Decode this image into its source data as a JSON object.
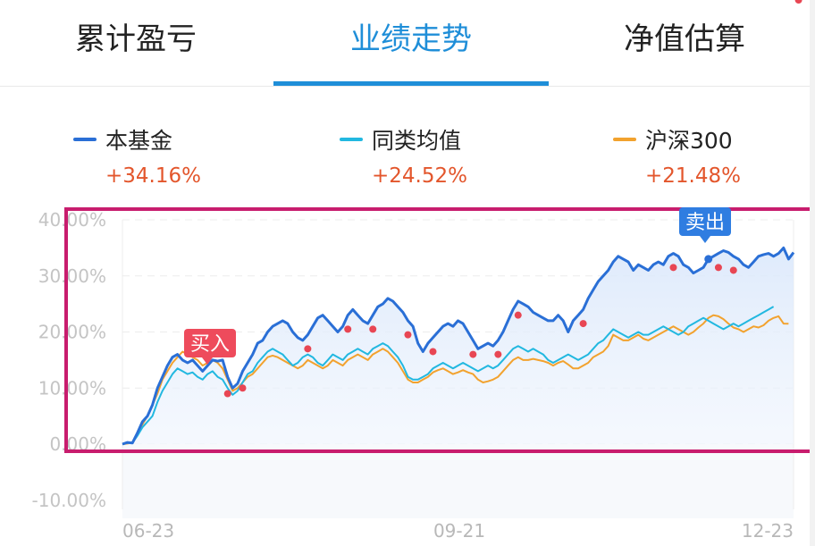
{
  "tabs": [
    {
      "label": "累计盈亏",
      "active": false
    },
    {
      "label": "业绩走势",
      "active": true
    },
    {
      "label": "净值估算",
      "active": false
    }
  ],
  "legend": [
    {
      "name": "本基金",
      "value": "+34.16%",
      "color": "#2a6fd6"
    },
    {
      "name": "同类均值",
      "value": "+24.52%",
      "color": "#22b8e0"
    },
    {
      "name": "沪深300",
      "value": "+21.48%",
      "color": "#f2a22e"
    }
  ],
  "chart_data": {
    "type": "line",
    "y_ticks": [
      "40.00%",
      "30.00%",
      "20.00%",
      "10.00%",
      "0.00%",
      "-10.00%"
    ],
    "x_ticks": [
      "06-23",
      "09-21",
      "12-23"
    ],
    "ylim": [
      -10,
      40
    ],
    "series": [
      {
        "name": "本基金",
        "color": "#2a6fd6",
        "values": [
          0,
          0.3,
          0.2,
          2,
          4,
          5,
          7,
          10,
          12,
          14,
          15.5,
          16,
          15,
          14.5,
          15,
          14,
          13,
          14,
          15,
          14.8,
          15,
          12,
          10,
          10.8,
          13,
          14.5,
          16,
          18,
          18.5,
          20,
          21,
          21.5,
          22,
          21.5,
          20,
          19,
          18.5,
          19.5,
          21,
          22.5,
          23,
          22,
          21,
          20,
          21,
          23,
          24,
          23,
          22,
          21.5,
          23,
          24.5,
          25,
          26,
          25.5,
          24.5,
          23.5,
          22,
          21,
          18,
          16.5,
          18,
          19,
          20,
          21,
          21.5,
          21,
          22,
          21.5,
          20,
          18.5,
          17,
          17.5,
          18,
          17.5,
          18.5,
          20,
          22,
          24,
          25.5,
          25,
          24.5,
          23.5,
          23,
          22.5,
          22,
          22,
          23,
          22,
          20,
          22,
          23,
          24,
          26,
          27.5,
          29,
          30,
          31,
          32.5,
          33.5,
          33,
          32.5,
          31,
          32,
          31.5,
          31,
          32,
          32.5,
          32,
          33.5,
          34,
          33.5,
          32,
          31.5,
          30.5,
          31,
          31.5,
          33,
          33.5,
          34,
          34.5,
          34.2,
          33.5,
          33,
          32,
          31.5,
          32.5,
          33.5,
          33.8,
          34,
          33.5,
          34,
          35,
          33,
          34.16
        ]
      },
      {
        "name": "同类均值",
        "color": "#22b8e0",
        "values": [
          0,
          0.2,
          0.2,
          1.5,
          3,
          4,
          5,
          7.5,
          9.5,
          11,
          12.5,
          13.5,
          13,
          12.5,
          12.8,
          12,
          11.5,
          12.5,
          13,
          12,
          11.5,
          10,
          8.8,
          9.5,
          11,
          12.5,
          13,
          14.5,
          15.5,
          16.5,
          17,
          16.5,
          16,
          15,
          14,
          14.5,
          15.5,
          16,
          15.5,
          14.5,
          14,
          15,
          16,
          15.5,
          15,
          16,
          16.5,
          17,
          16.5,
          16,
          17,
          17.5,
          18,
          17.5,
          16.5,
          15.5,
          14,
          12,
          11.5,
          11.5,
          12,
          12.5,
          13.5,
          14,
          14.5,
          14,
          13.5,
          14,
          14.5,
          14,
          13.5,
          13,
          13.5,
          14,
          13.5,
          14,
          15,
          16,
          17,
          17.5,
          17,
          16.5,
          17,
          16.5,
          16,
          15,
          14.5,
          15,
          15.5,
          16,
          15.5,
          15,
          15.5,
          16,
          17,
          18,
          18.5,
          19.5,
          20.5,
          20,
          19.5,
          19,
          19.5,
          20,
          19.5,
          19.5,
          20,
          20.5,
          21,
          20.5,
          20,
          19.5,
          20,
          21,
          21.5,
          22,
          22.5,
          22,
          21.5,
          21,
          20.5,
          21,
          21.5,
          21,
          21.5,
          22,
          22.5,
          23,
          23.5,
          24,
          24.52
        ]
      },
      {
        "name": "沪深300",
        "color": "#f2a22e",
        "values": [
          0,
          0.1,
          0.3,
          2,
          3.5,
          5,
          7,
          9,
          11.5,
          13,
          14.5,
          15.5,
          16.5,
          16,
          15.5,
          15,
          14,
          14.5,
          15,
          14.5,
          13.5,
          11.5,
          9.5,
          10,
          11,
          12,
          12.5,
          13.5,
          14.5,
          15.5,
          15.8,
          15.5,
          15,
          14.5,
          14,
          13.5,
          14,
          15,
          14.5,
          14,
          13.5,
          14,
          15,
          14.5,
          14,
          15,
          15.5,
          16,
          15.5,
          15,
          16,
          16.5,
          17,
          16.5,
          15.5,
          14.5,
          13,
          11.5,
          11,
          11,
          11.5,
          12,
          12.8,
          13.2,
          13.5,
          13,
          12.5,
          12.8,
          13.2,
          12.8,
          12.5,
          11.5,
          11,
          11.2,
          11.5,
          12,
          13,
          14,
          15,
          15.5,
          15,
          15,
          15.2,
          15,
          14.8,
          14.5,
          14,
          14.5,
          14.8,
          14.2,
          13.5,
          13.5,
          14,
          14.5,
          15.5,
          16,
          16.5,
          17.5,
          19.5,
          19,
          18.5,
          18.5,
          19,
          19.5,
          18.8,
          18.5,
          19,
          19.5,
          20,
          20.5,
          21,
          20.5,
          20,
          19.5,
          20,
          20.8,
          21.5,
          22.5,
          23,
          22.8,
          22.3,
          21.5,
          20.8,
          20.5,
          20,
          20.5,
          21,
          20.8,
          21.2,
          22,
          22.5,
          22.8,
          21.5,
          21.48
        ]
      }
    ],
    "buy_markers": [
      21,
      24
    ],
    "sell_markers": [
      37,
      45,
      50,
      57,
      62,
      70,
      75,
      79,
      92,
      110,
      119,
      122,
      135
    ],
    "sell_blue_marker": 117,
    "buy_tag": "买入",
    "sell_tag": "卖出"
  }
}
